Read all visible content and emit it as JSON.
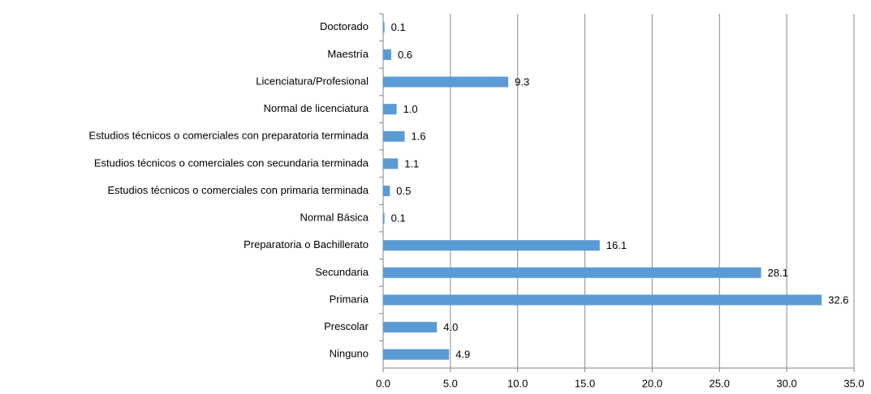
{
  "chart_data": {
    "type": "barh",
    "categories": [
      "Doctorado",
      "Maestría",
      "Licenciatura/Profesional",
      "Normal de licenciatura",
      "Estudios técnicos o comerciales con preparatoria terminada",
      "Estudios técnicos o comerciales con secundaria terminada",
      "Estudios técnicos o comerciales con primaria terminada",
      "Normal Básica",
      "Preparatoria o Bachillerato",
      "Secundaria",
      "Primaria",
      "Prescolar",
      "Ninguno"
    ],
    "values": [
      0.1,
      0.6,
      9.3,
      1.0,
      1.6,
      1.1,
      0.5,
      0.1,
      16.1,
      28.1,
      32.6,
      4.0,
      4.9
    ],
    "value_labels": [
      "0.1",
      "0.6",
      "9.3",
      "1.0",
      "1.6",
      "1.1",
      "0.5",
      "0.1",
      "16.1",
      "28.1",
      "32.6",
      "4.0",
      "4.9"
    ],
    "color": "#5b9bd5",
    "xlim": [
      0,
      35
    ],
    "xticks": [
      {
        "value": 0,
        "label": "0.0"
      },
      {
        "value": 5,
        "label": "5.0"
      },
      {
        "value": 10,
        "label": "10.0"
      },
      {
        "value": 15,
        "label": "15.0"
      },
      {
        "value": 20,
        "label": "20.0"
      },
      {
        "value": 25,
        "label": "25.0"
      },
      {
        "value": 30,
        "label": "30.0"
      },
      {
        "value": 35,
        "label": "35.0"
      }
    ],
    "grid": true
  }
}
